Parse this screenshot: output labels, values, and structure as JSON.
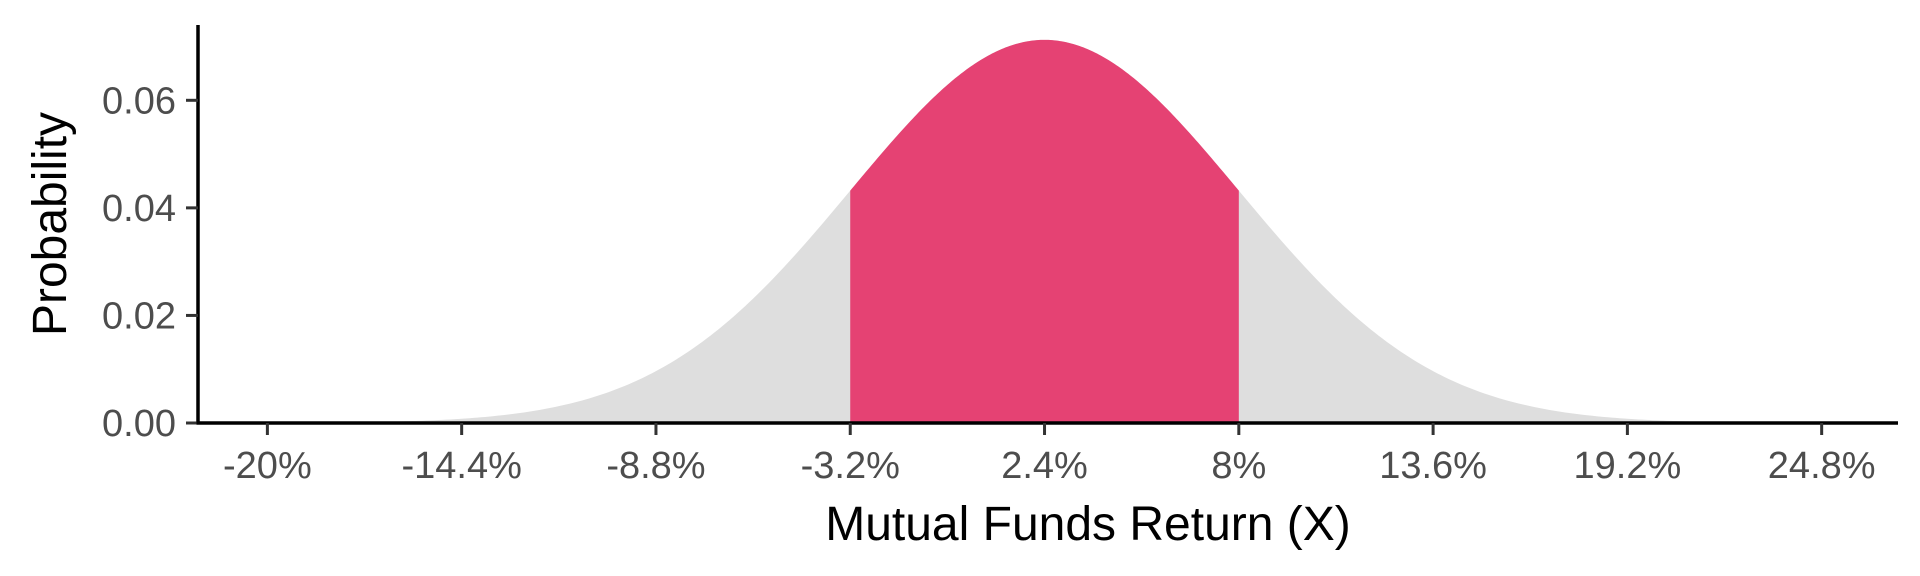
{
  "chart_data": {
    "type": "area",
    "title": "",
    "xlabel": "Mutual Funds Return (X)",
    "ylabel": "Probability",
    "distribution": "normal",
    "mean": 2.4,
    "sd": 5.6,
    "highlight_range": [
      -3.2,
      8
    ],
    "xlim": [
      -22,
      27
    ],
    "ylim": [
      0,
      0.074
    ],
    "x_ticks": [
      -20,
      -14.4,
      -8.8,
      -3.2,
      2.4,
      8,
      13.6,
      19.2,
      24.8
    ],
    "x_tick_labels": [
      "-20%",
      "-14.4%",
      "-8.8%",
      "-3.2%",
      "2.4%",
      "8%",
      "13.6%",
      "19.2%",
      "24.8%"
    ],
    "y_ticks": [
      0,
      0.02,
      0.04,
      0.06
    ],
    "y_tick_labels": [
      "0.00",
      "0.02",
      "0.04",
      "0.06"
    ],
    "grid": false,
    "legend": "none",
    "colors": {
      "area": "#dedede",
      "highlight": "#e54273",
      "axis": "#000000"
    }
  }
}
